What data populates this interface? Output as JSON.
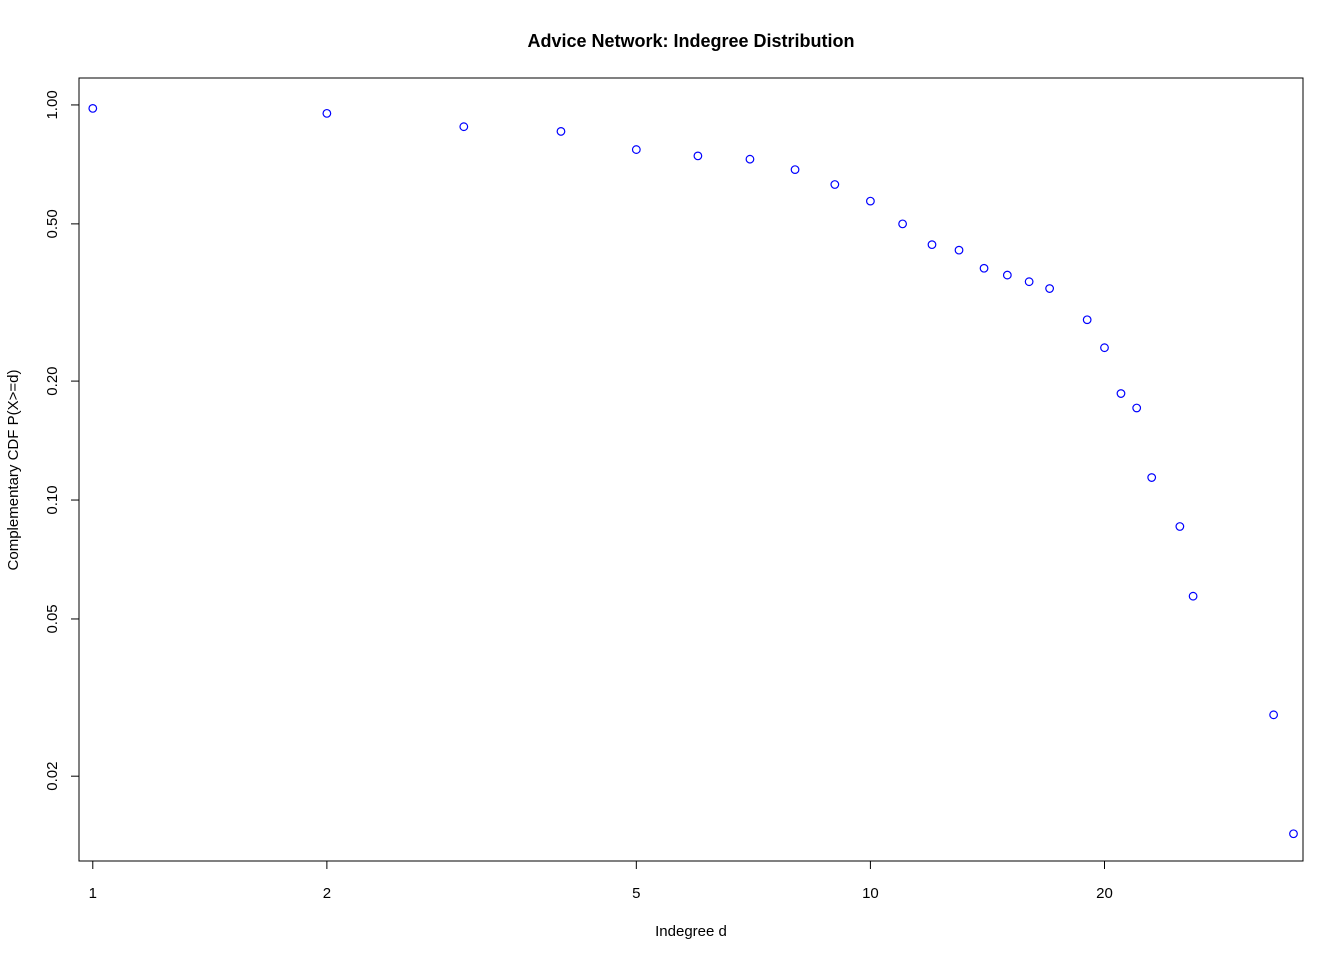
{
  "chart_data": {
    "type": "scatter",
    "title": "Advice Network: Indegree Distribution",
    "xlabel": "Indegree d",
    "ylabel": "Complementary CDF P(X>=d)",
    "x_scale": "log",
    "y_scale": "log",
    "xlim": [
      0.96,
      36
    ],
    "ylim": [
      0.0122,
      1.17
    ],
    "grid": false,
    "x_ticks": [
      {
        "value": 1,
        "label": "1"
      },
      {
        "value": 2,
        "label": "2"
      },
      {
        "value": 5,
        "label": "5"
      },
      {
        "value": 10,
        "label": "10"
      },
      {
        "value": 20,
        "label": "20"
      }
    ],
    "y_ticks": [
      {
        "value": 1.0,
        "label": "1.00"
      },
      {
        "value": 0.5,
        "label": "0.50"
      },
      {
        "value": 0.2,
        "label": "0.20"
      },
      {
        "value": 0.1,
        "label": "0.10"
      },
      {
        "value": 0.05,
        "label": "0.05"
      },
      {
        "value": 0.02,
        "label": "0.02"
      }
    ],
    "series": [
      {
        "color": "#0000ff",
        "marker": "open-circle",
        "x": [
          1,
          2,
          3,
          4,
          5,
          6,
          7,
          8,
          9,
          10,
          11,
          12,
          13,
          14,
          15,
          16,
          17,
          19,
          20,
          21,
          22,
          23,
          25,
          26,
          33,
          35
        ],
        "y": [
          0.98,
          0.952,
          0.881,
          0.857,
          0.771,
          0.743,
          0.729,
          0.686,
          0.629,
          0.571,
          0.5,
          0.443,
          0.429,
          0.386,
          0.371,
          0.357,
          0.343,
          0.286,
          0.243,
          0.186,
          0.171,
          0.114,
          0.0857,
          0.0571,
          0.0286,
          0.0143
        ]
      }
    ]
  }
}
